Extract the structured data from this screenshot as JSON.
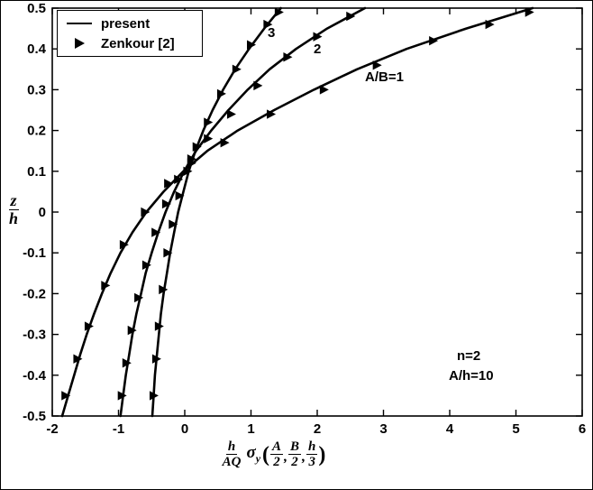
{
  "colors": {
    "foreground": "#000000",
    "background": "#ffffff"
  },
  "chart_data": {
    "type": "line",
    "title": "",
    "xlabel": "(h/AQ) sigma_y (A/2, B/2, h/3)",
    "ylabel": "z/h",
    "xlim": [
      -2,
      6
    ],
    "ylim": [
      -0.5,
      0.5
    ],
    "grid": false,
    "legend_position": "top-left",
    "x_ticks": [
      -2,
      -1,
      0,
      1,
      2,
      3,
      4,
      5,
      6
    ],
    "x_tick_labels": [
      "-2",
      "-1",
      "0",
      "1",
      "2",
      "3",
      "4",
      "5",
      "6"
    ],
    "y_ticks": [
      -0.5,
      -0.4,
      -0.3,
      -0.2,
      -0.1,
      0,
      0.1,
      0.2,
      0.3,
      0.4,
      0.5
    ],
    "y_tick_labels": [
      "-0.5",
      "-0.4",
      "-0.3",
      "-0.2",
      "-0.1",
      "0",
      "0.1",
      "0.2",
      "0.3",
      "0.4",
      "0.5"
    ],
    "legend_items": [
      {
        "label": "present",
        "marker": "line"
      },
      {
        "label": "Zenkour [2]",
        "marker": "triangle-right"
      }
    ],
    "annotations": {
      "curve_3": "3",
      "curve_2": "2",
      "curve_1": "A/B=1",
      "param_n": "n=2",
      "param_ah": "A/h=10"
    },
    "y_label_parts": {
      "numerator": "z",
      "denominator": "h"
    },
    "x_label_parts": {
      "coef_num": "h",
      "coef_den": "AQ",
      "sigma": "σ",
      "sigma_sub": "y",
      "open_paren": "(",
      "arg1_num": "A",
      "arg1_den": "2",
      "comma1": ",",
      "arg2_num": "B",
      "arg2_den": "2",
      "comma2": ",",
      "arg3_num": "h",
      "arg3_den": "3",
      "close_paren": ")"
    },
    "series": [
      {
        "name": "present-AB1",
        "label": "present A/B=1",
        "style": "line",
        "points": [
          [
            -1.85,
            -0.5
          ],
          [
            -1.76,
            -0.45
          ],
          [
            -1.67,
            -0.4
          ],
          [
            -1.58,
            -0.35
          ],
          [
            -1.48,
            -0.3
          ],
          [
            -1.37,
            -0.25
          ],
          [
            -1.25,
            -0.2
          ],
          [
            -1.12,
            -0.15
          ],
          [
            -0.97,
            -0.1
          ],
          [
            -0.79,
            -0.05
          ],
          [
            -0.58,
            0
          ],
          [
            -0.32,
            0.05
          ],
          [
            -0.02,
            0.1
          ],
          [
            0.34,
            0.15
          ],
          [
            0.8,
            0.2
          ],
          [
            1.35,
            0.25
          ],
          [
            1.95,
            0.3
          ],
          [
            2.6,
            0.35
          ],
          [
            3.35,
            0.4
          ],
          [
            4.25,
            0.45
          ],
          [
            5.25,
            0.5
          ]
        ]
      },
      {
        "name": "present-AB2",
        "label": "present A/B=2",
        "style": "line",
        "points": [
          [
            -0.97,
            -0.5
          ],
          [
            -0.93,
            -0.45
          ],
          [
            -0.89,
            -0.4
          ],
          [
            -0.84,
            -0.35
          ],
          [
            -0.79,
            -0.3
          ],
          [
            -0.73,
            -0.25
          ],
          [
            -0.66,
            -0.2
          ],
          [
            -0.59,
            -0.15
          ],
          [
            -0.5,
            -0.1
          ],
          [
            -0.4,
            -0.05
          ],
          [
            -0.29,
            0
          ],
          [
            -0.16,
            0.05
          ],
          [
            -0.01,
            0.1
          ],
          [
            0.17,
            0.15
          ],
          [
            0.4,
            0.2
          ],
          [
            0.66,
            0.25
          ],
          [
            0.95,
            0.3
          ],
          [
            1.28,
            0.35
          ],
          [
            1.68,
            0.4
          ],
          [
            2.15,
            0.45
          ],
          [
            2.72,
            0.5
          ]
        ]
      },
      {
        "name": "present-AB3",
        "label": "present A/B=3",
        "style": "line",
        "points": [
          [
            -0.49,
            -0.5
          ],
          [
            -0.47,
            -0.45
          ],
          [
            -0.45,
            -0.4
          ],
          [
            -0.42,
            -0.35
          ],
          [
            -0.39,
            -0.3
          ],
          [
            -0.36,
            -0.25
          ],
          [
            -0.32,
            -0.2
          ],
          [
            -0.27,
            -0.15
          ],
          [
            -0.22,
            -0.1
          ],
          [
            -0.16,
            -0.05
          ],
          [
            -0.1,
            0
          ],
          [
            -0.02,
            0.05
          ],
          [
            0.06,
            0.1
          ],
          [
            0.16,
            0.15
          ],
          [
            0.28,
            0.2
          ],
          [
            0.42,
            0.25
          ],
          [
            0.58,
            0.3
          ],
          [
            0.76,
            0.35
          ],
          [
            0.97,
            0.4
          ],
          [
            1.2,
            0.45
          ],
          [
            1.45,
            0.5
          ]
        ]
      },
      {
        "name": "zenkour-AB1",
        "label": "Zenkour [2] A/B=1",
        "style": "triangle-markers",
        "points": [
          [
            -1.8,
            -0.45
          ],
          [
            -1.62,
            -0.36
          ],
          [
            -1.45,
            -0.28
          ],
          [
            -1.2,
            -0.18
          ],
          [
            -0.92,
            -0.08
          ],
          [
            -0.6,
            0.0
          ],
          [
            -0.25,
            0.07
          ],
          [
            0.1,
            0.12
          ],
          [
            0.6,
            0.17
          ],
          [
            1.3,
            0.24
          ],
          [
            2.1,
            0.3
          ],
          [
            2.9,
            0.36
          ],
          [
            3.75,
            0.42
          ],
          [
            4.6,
            0.46
          ],
          [
            5.2,
            0.49
          ]
        ]
      },
      {
        "name": "zenkour-AB2",
        "label": "Zenkour [2] A/B=2",
        "style": "triangle-markers",
        "points": [
          [
            -0.95,
            -0.45
          ],
          [
            -0.88,
            -0.37
          ],
          [
            -0.8,
            -0.29
          ],
          [
            -0.7,
            -0.21
          ],
          [
            -0.58,
            -0.13
          ],
          [
            -0.44,
            -0.05
          ],
          [
            -0.28,
            0.02
          ],
          [
            -0.1,
            0.08
          ],
          [
            0.1,
            0.13
          ],
          [
            0.35,
            0.18
          ],
          [
            0.7,
            0.24
          ],
          [
            1.1,
            0.31
          ],
          [
            1.55,
            0.38
          ],
          [
            2.0,
            0.43
          ],
          [
            2.5,
            0.48
          ]
        ]
      },
      {
        "name": "zenkour-AB3",
        "label": "Zenkour [2] A/B=3",
        "style": "triangle-markers",
        "points": [
          [
            -0.47,
            -0.45
          ],
          [
            -0.43,
            -0.36
          ],
          [
            -0.39,
            -0.28
          ],
          [
            -0.33,
            -0.19
          ],
          [
            -0.26,
            -0.1
          ],
          [
            -0.18,
            -0.03
          ],
          [
            -0.08,
            0.04
          ],
          [
            0.04,
            0.1
          ],
          [
            0.18,
            0.16
          ],
          [
            0.35,
            0.22
          ],
          [
            0.55,
            0.29
          ],
          [
            0.78,
            0.35
          ],
          [
            1.0,
            0.41
          ],
          [
            1.25,
            0.46
          ],
          [
            1.42,
            0.49
          ]
        ]
      }
    ]
  }
}
